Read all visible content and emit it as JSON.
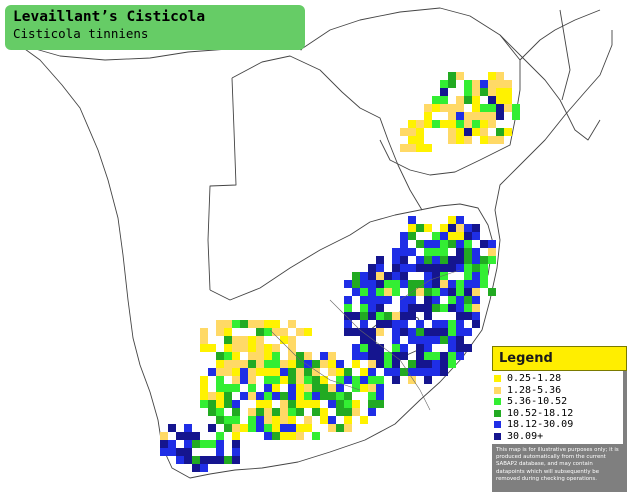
{
  "title": {
    "common_name": "Levaillant’s Cisticola",
    "scientific_name": "Cisticola tinniens"
  },
  "legend": {
    "heading": "Legend",
    "items": [
      {
        "label": "0.25-1.28",
        "color": "#fff200"
      },
      {
        "label": "1.28-5.36",
        "color": "#ffd966"
      },
      {
        "label": "5.36-10.52",
        "color": "#33ee33"
      },
      {
        "label": "10.52-18.12",
        "color": "#22aa22"
      },
      {
        "label": "18.12-30.09",
        "color": "#1f2ee6"
      },
      {
        "label": "30.09+",
        "color": "#15158f"
      }
    ],
    "disclaimer": "This map is for illustrative purposes only; it is produced automatically from the current SABAP2 database, and may contain datapoints which will subsequently be removed during checking operations."
  },
  "map": {
    "colors": {
      "background": "#ffffff",
      "border": "#444444",
      "very_low": "#fff200",
      "low": "#ffd966",
      "medium": "#33ee33",
      "high": "#22aa22",
      "very_high": "#1f2ee6",
      "highest": "#15158f"
    }
  }
}
